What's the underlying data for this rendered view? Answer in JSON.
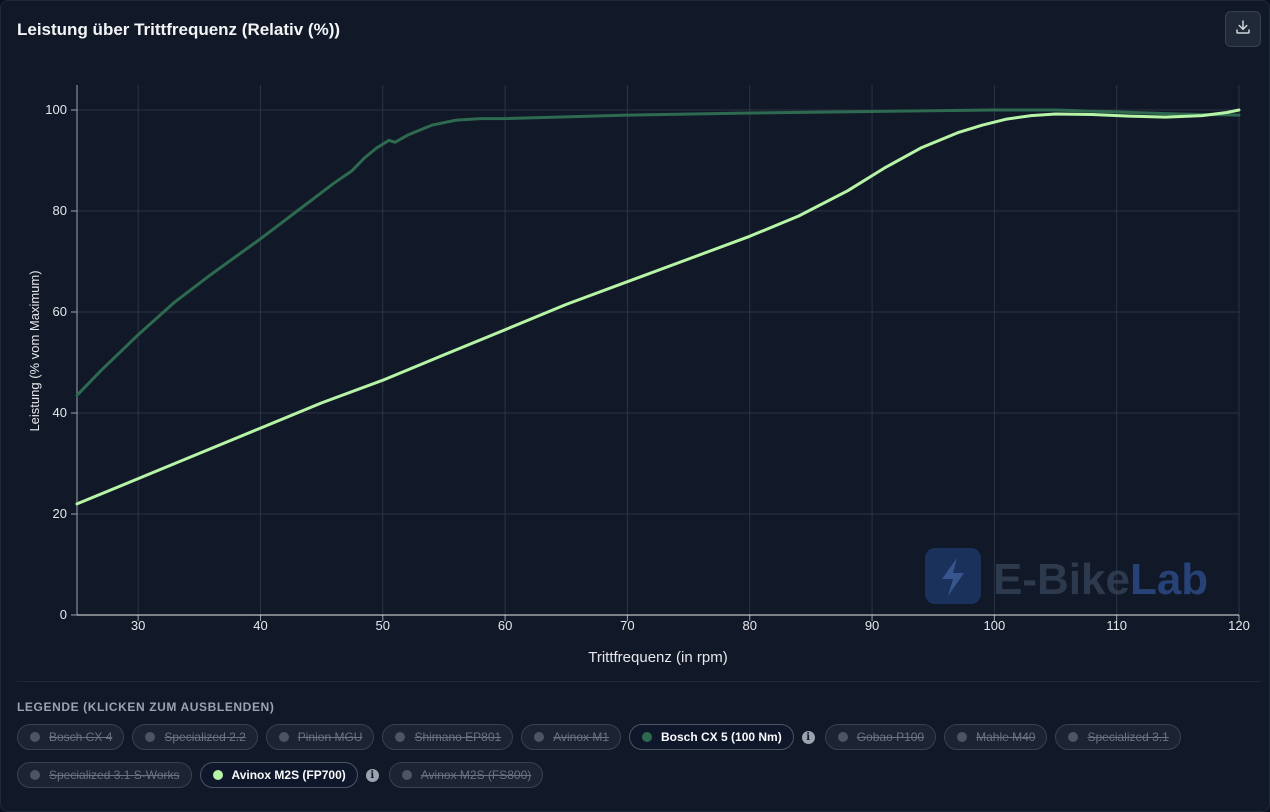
{
  "title": "Leistung über Trittfrequenz (Relativ (%))",
  "download_icon": "download-icon",
  "watermark": {
    "text_main": "E-Bike",
    "text_accent": "Lab",
    "icon": "lightning-bolt-icon"
  },
  "legend": {
    "title": "LEGENDE (KLICKEN ZUM AUSBLENDEN)",
    "items": [
      {
        "label": "Bosch CX 4",
        "active": false,
        "info": false
      },
      {
        "label": "Specialized 2.2",
        "active": false,
        "info": false
      },
      {
        "label": "Pinion MGU",
        "active": false,
        "info": false
      },
      {
        "label": "Shimano EP801",
        "active": false,
        "info": false
      },
      {
        "label": "Avinox M1",
        "active": false,
        "info": false
      },
      {
        "label": "Bosch CX 5 (100 Nm)",
        "active": true,
        "info": true,
        "color": "#2d6a4f"
      },
      {
        "label": "Gobao P100",
        "active": false,
        "info": false
      },
      {
        "label": "Mahle M40",
        "active": false,
        "info": false
      },
      {
        "label": "Specialized 3.1",
        "active": false,
        "info": false
      },
      {
        "label": "Specialized 3.1 S-Works",
        "active": false,
        "info": false
      },
      {
        "label": "Avinox M2S (FP700)",
        "active": true,
        "info": true,
        "color": "#b7f5a6"
      },
      {
        "label": "Avinox M2S (FS800)",
        "active": false,
        "info": false
      }
    ]
  },
  "chart_data": {
    "type": "line",
    "xlabel": "Trittfrequenz (in rpm)",
    "ylabel": "Leistung (% vom Maximum)",
    "xlim": [
      25,
      120
    ],
    "ylim": [
      0,
      105
    ],
    "xticks": [
      30,
      40,
      50,
      60,
      70,
      80,
      90,
      100,
      110,
      120
    ],
    "yticks": [
      0,
      20,
      40,
      60,
      80,
      100
    ],
    "grid": true,
    "series": [
      {
        "name": "Bosch CX 5 (100 Nm)",
        "color": "#2d6a4f",
        "x": [
          25,
          27,
          30,
          33,
          36,
          40,
          43,
          46,
          47.5,
          48.5,
          49.5,
          50.5,
          51,
          52,
          54,
          56,
          58,
          60,
          70,
          80,
          90,
          100,
          105,
          110,
          115,
          120
        ],
        "y": [
          43.5,
          48.5,
          55.5,
          62,
          67.5,
          74.5,
          80,
          85.5,
          88,
          90.5,
          92.5,
          94,
          93.6,
          95,
          97,
          98,
          98.3,
          98.3,
          99,
          99.4,
          99.7,
          100,
          100,
          99.6,
          99.2,
          99
        ]
      },
      {
        "name": "Avinox M2S (FP700)",
        "color": "#b7f5a6",
        "x": [
          25,
          30,
          35,
          40,
          45,
          50,
          55,
          60,
          65,
          70,
          75,
          80,
          84,
          88,
          91,
          94,
          97,
          99,
          101,
          103,
          105,
          108,
          111,
          114,
          117,
          119,
          120
        ],
        "y": [
          22,
          27,
          32,
          37,
          42,
          46.5,
          51.5,
          56.5,
          61.5,
          66,
          70.5,
          75,
          79,
          84,
          88.5,
          92.5,
          95.5,
          97,
          98.2,
          98.9,
          99.2,
          99.1,
          98.8,
          98.6,
          98.9,
          99.5,
          100
        ]
      }
    ]
  }
}
